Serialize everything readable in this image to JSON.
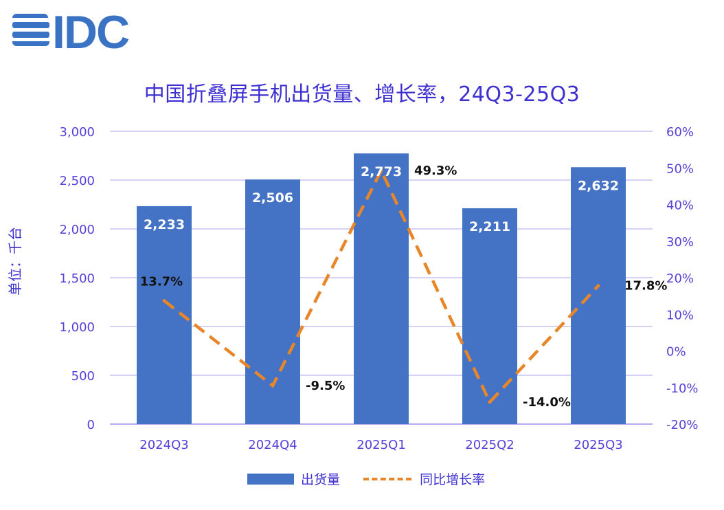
{
  "logo": {
    "text": "IDC",
    "color": "#3a72c4"
  },
  "chart_data": {
    "type": "bar",
    "title": "中国折叠屏手机出货量、增长率，24Q3-25Q3",
    "ylabel": "单位：千台",
    "categories": [
      "2024Q3",
      "2024Q4",
      "2025Q1",
      "2025Q2",
      "2025Q3"
    ],
    "series": [
      {
        "name": "出货量",
        "type": "bar",
        "axis": "left",
        "color": "#4472c4",
        "values": [
          2233,
          2506,
          2773,
          2211,
          2632
        ],
        "labels": [
          "2,233",
          "2,506",
          "2,773",
          "2,211",
          "2,632"
        ]
      },
      {
        "name": "同比增长率",
        "type": "line",
        "axis": "right",
        "color": "#e8862a",
        "style": "dashed",
        "values": [
          13.7,
          -9.5,
          49.3,
          -14.0,
          17.8
        ],
        "labels": [
          "13.7%",
          "-9.5%",
          "49.3%",
          "-14.0%",
          "17.8%"
        ]
      }
    ],
    "y_left": {
      "min": 0,
      "max": 3000,
      "ticks": [
        0,
        500,
        1000,
        1500,
        2000,
        2500,
        3000
      ],
      "tick_labels": [
        "0",
        "500",
        "1,000",
        "1,500",
        "2,000",
        "2,500",
        "3,000"
      ]
    },
    "y_right": {
      "min": -20,
      "max": 60,
      "ticks": [
        -20,
        -10,
        0,
        10,
        20,
        30,
        40,
        50,
        60
      ],
      "tick_labels": [
        "-20%",
        "-10%",
        "0%",
        "10%",
        "20%",
        "30%",
        "40%",
        "50%",
        "60%"
      ]
    },
    "grid": true,
    "legend_position": "bottom",
    "legend": [
      "出货量",
      "同比增长率"
    ]
  }
}
